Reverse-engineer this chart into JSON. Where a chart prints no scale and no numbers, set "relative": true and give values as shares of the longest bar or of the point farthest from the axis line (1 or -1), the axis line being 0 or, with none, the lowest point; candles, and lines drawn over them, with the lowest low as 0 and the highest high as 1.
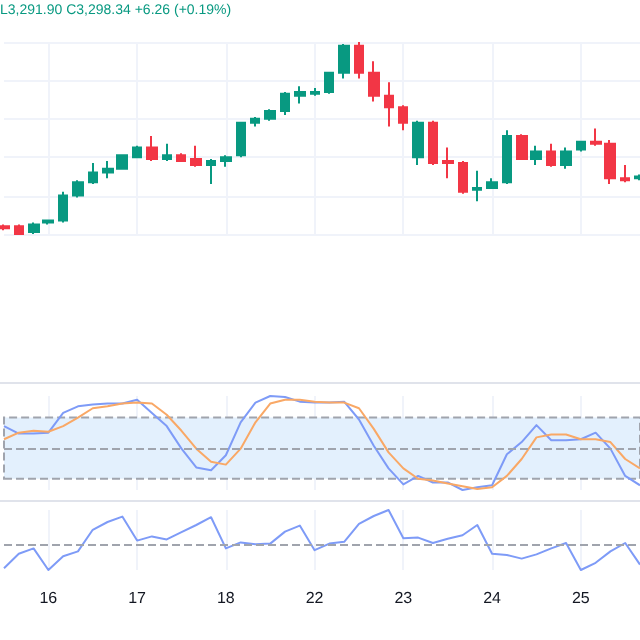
{
  "chart_data": [
    {
      "type": "candlestick",
      "relative": true,
      "grid": true,
      "tick_labels": false,
      "annotations": [
        "L3,291.90 C3,298.34 +6.26 (+0.19%)"
      ],
      "categories": [
        null,
        null,
        null,
        "16",
        null,
        null,
        null,
        null,
        null,
        "17",
        null,
        null,
        null,
        null,
        null,
        "18",
        null,
        null,
        null,
        null,
        null,
        "22",
        null,
        null,
        null,
        null,
        null,
        "23",
        null,
        null,
        null,
        null,
        null,
        "24",
        null,
        null,
        null,
        null,
        null,
        "25",
        null,
        null,
        null,
        null
      ],
      "series": [
        {
          "colors": [
            "#f23645",
            "#f23645",
            "#089981",
            "#089981",
            "#089981",
            "#089981",
            "#089981",
            "#089981",
            "#089981",
            "#089981",
            "#f23645",
            "#089981",
            "#f23645",
            "#f23645",
            "#089981",
            "#089981",
            "#089981",
            "#089981",
            "#089981",
            "#089981",
            "#089981",
            "#089981",
            "#089981",
            "#089981",
            "#f23645",
            "#f23645",
            "#f23645",
            "#f23645",
            "#089981",
            "#f23645",
            "#f23645",
            "#f23645",
            "#089981",
            "#089981",
            "#089981",
            "#f23645",
            "#089981",
            "#f23645",
            "#089981",
            "#089981",
            "#f23645",
            "#f23645",
            "#f23645",
            "#089981"
          ],
          "ohlc": [
            [
              0.04,
              0.05,
              0.02,
              0.03
            ],
            [
              0.04,
              0.05,
              0,
              0
            ],
            [
              0.01,
              0.06,
              0,
              0.05
            ],
            [
              0.06,
              0.07,
              0.05,
              0.07
            ],
            [
              0.07,
              0.22,
              0.06,
              0.2
            ],
            [
              0.2,
              0.28,
              0.19,
              0.27
            ],
            [
              0.27,
              0.37,
              0.26,
              0.32
            ],
            [
              0.32,
              0.38,
              0.29,
              0.34
            ],
            [
              0.34,
              0.41,
              0.34,
              0.41
            ],
            [
              0.4,
              0.46,
              0.4,
              0.45
            ],
            [
              0.45,
              0.51,
              0.38,
              0.39
            ],
            [
              0.39,
              0.47,
              0.38,
              0.41
            ],
            [
              0.41,
              0.42,
              0.38,
              0.38
            ],
            [
              0.39,
              0.46,
              0.35,
              0.36
            ],
            [
              0.36,
              0.39,
              0.26,
              0.38
            ],
            [
              0.38,
              0.41,
              0.35,
              0.4
            ],
            [
              0.41,
              0.58,
              0.4,
              0.58
            ],
            [
              0.58,
              0.61,
              0.56,
              0.6
            ],
            [
              0.6,
              0.65,
              0.59,
              0.64
            ],
            [
              0.64,
              0.74,
              0.62,
              0.73
            ],
            [
              0.72,
              0.77,
              0.68,
              0.74
            ],
            [
              0.73,
              0.76,
              0.72,
              0.74
            ],
            [
              0.74,
              0.84,
              0.73,
              0.84
            ],
            [
              0.84,
              0.99,
              0.81,
              0.98
            ],
            [
              0.98,
              1,
              0.81,
              0.84
            ],
            [
              0.84,
              0.9,
              0.69,
              0.72
            ],
            [
              0.72,
              0.79,
              0.56,
              0.66
            ],
            [
              0.66,
              0.67,
              0.54,
              0.58
            ],
            [
              0.4,
              0.59,
              0.36,
              0.58
            ],
            [
              0.58,
              0.59,
              0.36,
              0.37
            ],
            [
              0.38,
              0.45,
              0.29,
              0.37
            ],
            [
              0.37,
              0.38,
              0.21,
              0.22
            ],
            [
              0.23,
              0.33,
              0.17,
              0.24
            ],
            [
              0.24,
              0.29,
              0.24,
              0.27
            ],
            [
              0.27,
              0.54,
              0.26,
              0.51
            ],
            [
              0.51,
              0.52,
              0.39,
              0.39
            ],
            [
              0.39,
              0.46,
              0.36,
              0.43
            ],
            [
              0.43,
              0.47,
              0.35,
              0.36
            ],
            [
              0.36,
              0.45,
              0.34,
              0.43
            ],
            [
              0.44,
              0.48,
              0.43,
              0.48
            ],
            [
              0.48,
              0.55,
              0.46,
              0.47
            ],
            [
              0.47,
              0.49,
              0.26,
              0.29
            ],
            [
              0.29,
              0.36,
              0.27,
              0.28
            ],
            [
              0.29,
              0.31,
              0.28,
              0.3
            ]
          ]
        }
      ]
    },
    {
      "type": "line",
      "relative": true,
      "grid": "x",
      "tick_labels": false,
      "categories": [
        null,
        null,
        null,
        "16",
        null,
        null,
        null,
        null,
        null,
        "17",
        null,
        null,
        null,
        null,
        null,
        "18",
        null,
        null,
        null,
        null,
        null,
        "22",
        null,
        null,
        null,
        null,
        null,
        "23",
        null,
        null,
        null,
        null,
        null,
        "24",
        null,
        null,
        null,
        null,
        null,
        "25",
        null,
        null,
        null,
        null
      ],
      "bands": [
        {
          "axis": "y",
          "from": 0.12,
          "to": 0.77,
          "color": "#e3f0fd"
        }
      ],
      "ref_lines": [
        {
          "axis": "y",
          "value": 0.44,
          "color": "#a0a4ad",
          "line_style": "dashed"
        }
      ],
      "series": [
        {
          "color": "#7e9bf7",
          "values": [
            0.68,
            0.6,
            0.6,
            0.61,
            0.82,
            0.89,
            0.91,
            0.92,
            0.92,
            0.96,
            0.82,
            0.68,
            0.44,
            0.24,
            0.21,
            0.37,
            0.72,
            0.93,
            1,
            0.99,
            0.94,
            0.93,
            0.93,
            0.94,
            0.75,
            0.47,
            0.23,
            0.06,
            0.15,
            0.08,
            0.08,
            0,
            0.03,
            0.05,
            0.38,
            0.51,
            0.69,
            0.53,
            0.53,
            0.54,
            0.61,
            0.44,
            0.15,
            0.05
          ]
        },
        {
          "color": "#f9a866",
          "values": [
            0.54,
            0.61,
            0.63,
            0.62,
            0.68,
            0.77,
            0.87,
            0.89,
            0.92,
            0.93,
            0.92,
            0.8,
            0.63,
            0.44,
            0.3,
            0.27,
            0.44,
            0.72,
            0.92,
            0.96,
            0.96,
            0.94,
            0.93,
            0.93,
            0.87,
            0.65,
            0.4,
            0.23,
            0.12,
            0.1,
            0.07,
            0.04,
            0.01,
            0.03,
            0.15,
            0.33,
            0.56,
            0.59,
            0.59,
            0.54,
            0.54,
            0.51,
            0.33,
            0.23
          ]
        }
      ]
    },
    {
      "type": "line",
      "relative": true,
      "grid": "x",
      "tick_labels": "x",
      "categories": [
        null,
        null,
        null,
        "16",
        null,
        null,
        null,
        null,
        null,
        "17",
        null,
        null,
        null,
        null,
        null,
        "18",
        null,
        null,
        null,
        null,
        null,
        "22",
        null,
        null,
        null,
        null,
        null,
        "23",
        null,
        null,
        null,
        null,
        null,
        "24",
        null,
        null,
        null,
        null,
        null,
        "25",
        null,
        null,
        null,
        null
      ],
      "ref_lines": [
        {
          "axis": "y",
          "value": 0.44,
          "color": "#a0a4ad",
          "line_style": "dashed"
        }
      ],
      "series": [
        {
          "color": "#7e9bf7",
          "values": [
            0.03,
            0.27,
            0.36,
            0,
            0.23,
            0.31,
            0.67,
            0.8,
            0.89,
            0.49,
            0.56,
            0.51,
            0.63,
            0.75,
            0.88,
            0.36,
            0.46,
            0.43,
            0.44,
            0.64,
            0.74,
            0.33,
            0.44,
            0.47,
            0.77,
            0.9,
            1,
            0.53,
            0.54,
            0.45,
            0.52,
            0.58,
            0.75,
            0.27,
            0.25,
            0.19,
            0.26,
            0.36,
            0.45,
            0,
            0.12,
            0.31,
            0.45,
            0.09
          ]
        }
      ]
    }
  ]
}
